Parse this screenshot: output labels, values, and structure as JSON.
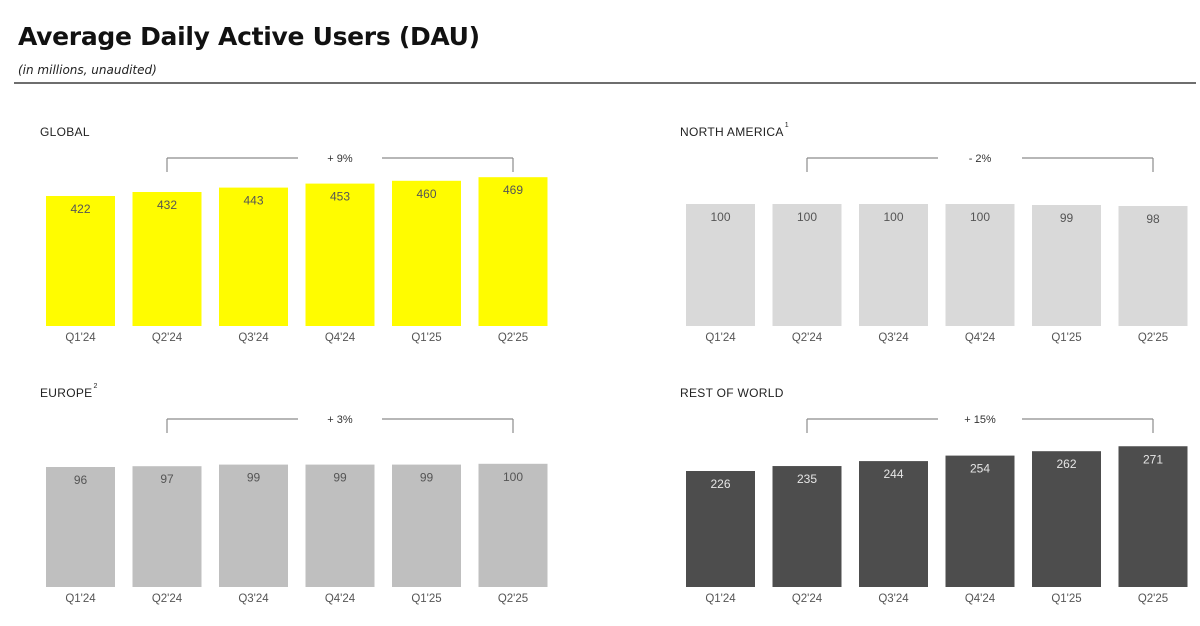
{
  "title": "Average Daily Active Users (DAU)",
  "subtitle": "(in millions, unaudited)",
  "colors": {
    "global": "#fffc00",
    "north_america": "#d9d9d9",
    "europe": "#bfbfbf",
    "rest_of_world": "#4d4d4d",
    "bracket": "#8c8c8c"
  },
  "chart_data": [
    {
      "type": "bar",
      "title": "GLOBAL",
      "footnote": "",
      "categories": [
        "Q1'24",
        "Q2'24",
        "Q3'24",
        "Q4'24",
        "Q1'25",
        "Q2'25"
      ],
      "values": [
        422,
        432,
        443,
        453,
        460,
        469
      ],
      "data_labels": [
        "422",
        "432",
        "443",
        "453",
        "460",
        "469"
      ],
      "annotation": "+ 9%",
      "bar_color": "#fffc00",
      "label_color": "#555555"
    },
    {
      "type": "bar",
      "title": "NORTH AMERICA",
      "footnote": "1",
      "categories": [
        "Q1'24",
        "Q2'24",
        "Q3'24",
        "Q4'24",
        "Q1'25",
        "Q2'25"
      ],
      "values": [
        100,
        100,
        100,
        100,
        99,
        98
      ],
      "data_labels": [
        "100",
        "100",
        "100",
        "100",
        "99",
        "98"
      ],
      "annotation": "- 2%",
      "bar_color": "#d9d9d9",
      "label_color": "#555555"
    },
    {
      "type": "bar",
      "title": "EUROPE",
      "footnote": "2",
      "categories": [
        "Q1'24",
        "Q2'24",
        "Q3'24",
        "Q4'24",
        "Q1'25",
        "Q2'25"
      ],
      "values": [
        96,
        97,
        99,
        99,
        99,
        100
      ],
      "data_labels": [
        "96",
        "97",
        "99",
        "99",
        "99",
        "100"
      ],
      "annotation": "+ 3%",
      "bar_color": "#bfbfbf",
      "label_color": "#555555"
    },
    {
      "type": "bar",
      "title": "REST OF WORLD",
      "footnote": "",
      "categories": [
        "Q1'24",
        "Q2'24",
        "Q3'24",
        "Q4'24",
        "Q1'25",
        "Q2'25"
      ],
      "values": [
        226,
        235,
        244,
        254,
        262,
        271
      ],
      "data_labels": [
        "226",
        "235",
        "244",
        "254",
        "262",
        "271"
      ],
      "annotation": "+ 15%",
      "bar_color": "#4d4d4d",
      "label_color": "#e6e6e6"
    }
  ]
}
